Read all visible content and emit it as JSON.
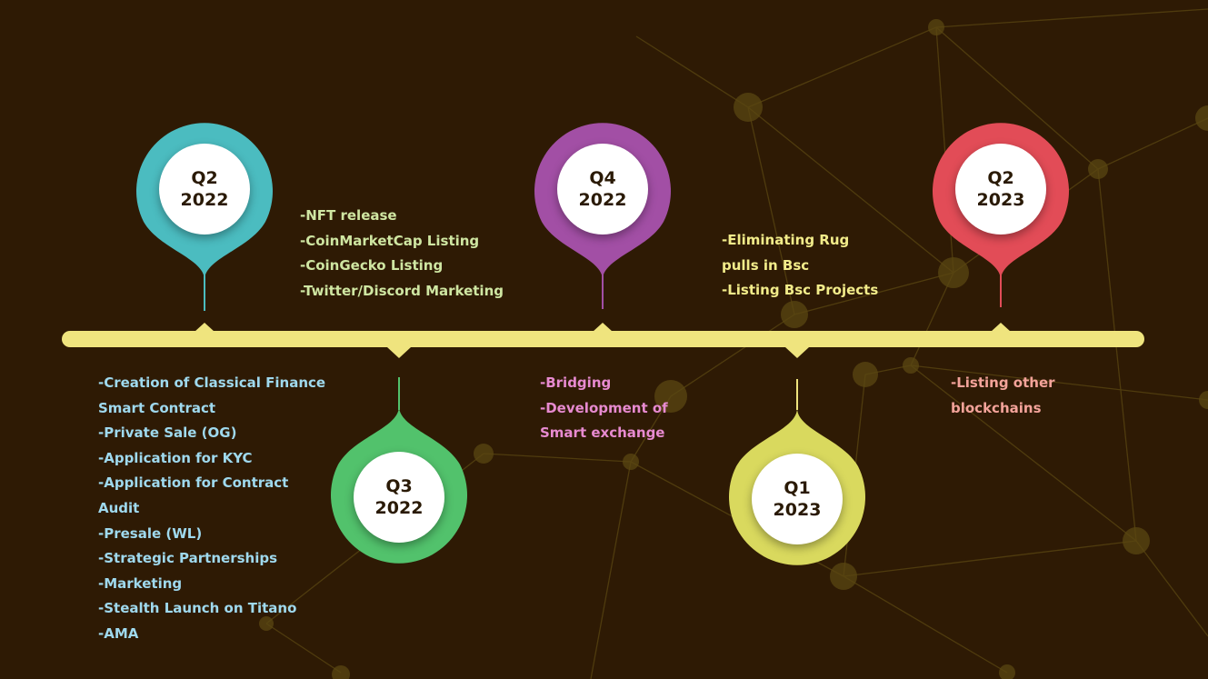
{
  "colors": {
    "background": "#2e1a04",
    "timeline": "#efe47e",
    "teal": "#4bbcc0",
    "green": "#52c26c",
    "purple": "#a24fa5",
    "yellow": "#d9d95e",
    "red": "#e24c57",
    "text_blue": "#9fd9ee",
    "text_green": "#cfe6a2",
    "text_pink": "#e78ad0",
    "text_yellow": "#f2ec8a",
    "text_salmon": "#f3a39a"
  },
  "milestones": [
    {
      "quarter": "Q2",
      "year": "2022",
      "color": "teal",
      "text_color": "text_blue",
      "items": [
        "-Creation of Classical Finance",
        "Smart Contract",
        "-Private Sale (OG)",
        "-Application for KYC",
        "-Application for Contract",
        "Audit",
        "-Presale (WL)",
        "-Strategic Partnerships",
        "-Marketing",
        "-Stealth Launch on Titano",
        "-AMA"
      ]
    },
    {
      "quarter": "Q3",
      "year": "2022",
      "color": "green",
      "text_color": "text_green",
      "items": [
        "-NFT release",
        "-CoinMarketCap Listing",
        "-CoinGecko Listing",
        "-Twitter/Discord Marketing"
      ]
    },
    {
      "quarter": "Q4",
      "year": "2022",
      "color": "purple",
      "text_color": "text_pink",
      "items": [
        "-Bridging",
        "-Development of",
        "Smart exchange"
      ]
    },
    {
      "quarter": "Q1",
      "year": "2023",
      "color": "yellow",
      "text_color": "text_yellow",
      "items": [
        "-Eliminating Rug",
        "pulls in Bsc",
        "-Listing Bsc Projects"
      ]
    },
    {
      "quarter": "Q2",
      "year": "2023",
      "color": "red",
      "text_color": "text_salmon",
      "items": [
        "-Listing other",
        "blockchains"
      ]
    }
  ]
}
